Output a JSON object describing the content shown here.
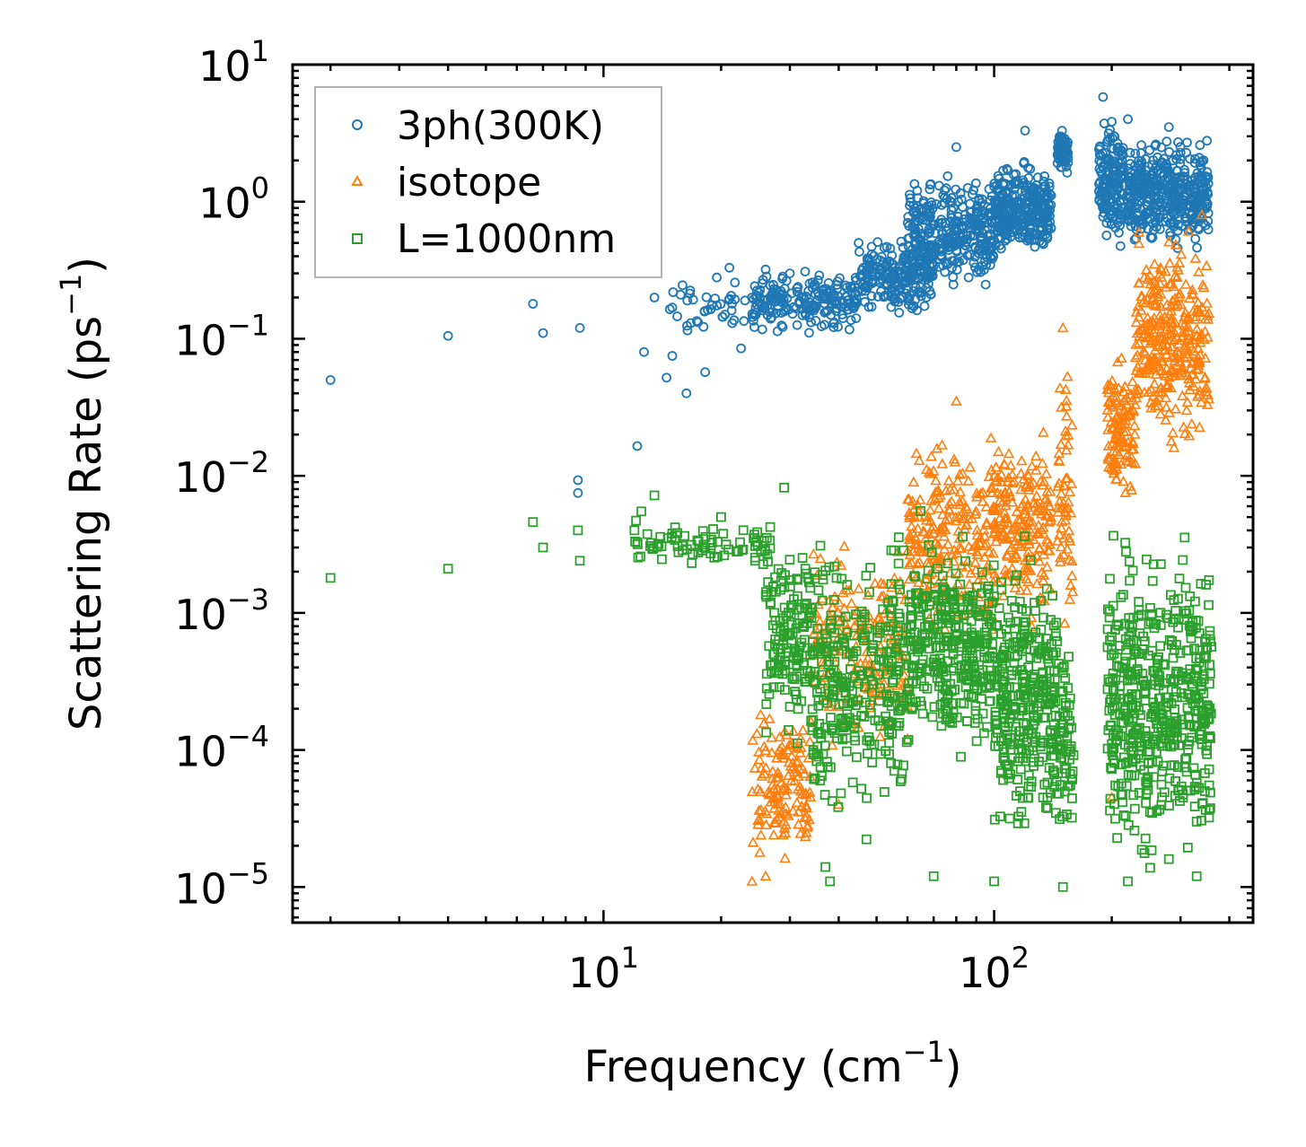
{
  "chart_data": {
    "type": "scatter",
    "xscale": "log",
    "yscale": "log",
    "xlabel": "Frequency (cm",
    "xlabel_exp": "−1",
    "xlabel_end": ")",
    "ylabel": "Scattering Rate (ps",
    "ylabel_exp": "−1",
    "ylabel_end": ")",
    "xlim": [
      1.6,
      460
    ],
    "ylim": [
      5.5e-06,
      10
    ],
    "x_major_ticks": [
      {
        "value": 10,
        "base": "10",
        "exp": "1"
      },
      {
        "value": 100,
        "base": "10",
        "exp": "2"
      }
    ],
    "y_major_ticks": [
      {
        "value": 10,
        "base": "10",
        "exp": "1"
      },
      {
        "value": 1,
        "base": "10",
        "exp": "0"
      },
      {
        "value": 0.1,
        "base": "10",
        "exp": "−1"
      },
      {
        "value": 0.01,
        "base": "10",
        "exp": "−2"
      },
      {
        "value": 0.001,
        "base": "10",
        "exp": "−3"
      },
      {
        "value": 0.0001,
        "base": "10",
        "exp": "−4"
      },
      {
        "value": 1e-05,
        "base": "10",
        "exp": "−5"
      }
    ],
    "legend_position": "top-left",
    "series": [
      {
        "name": "3ph(300K)",
        "marker": "circle",
        "color": "#1f77b4",
        "points": [
          [
            2,
            0.05
          ],
          [
            4,
            0.105
          ],
          [
            6.6,
            0.18
          ],
          [
            7,
            0.11
          ],
          [
            8.7,
            0.12
          ],
          [
            8.6,
            0.0093
          ],
          [
            8.6,
            0.0075
          ],
          [
            12.2,
            0.0165
          ],
          [
            12.7,
            0.08
          ],
          [
            13.5,
            0.2
          ],
          [
            14.5,
            0.052
          ],
          [
            15,
            0.075
          ],
          [
            16.3,
            0.04
          ],
          [
            16.4,
            0.115
          ],
          [
            18.2,
            0.057
          ],
          [
            19.5,
            0.28
          ],
          [
            21,
            0.33
          ],
          [
            22.5,
            0.085
          ],
          [
            24,
            0.2
          ],
          [
            26,
            0.32
          ],
          [
            30,
            0.3
          ],
          [
            45,
            0.5
          ],
          [
            80,
            2.5
          ],
          [
            120,
            3.3
          ],
          [
            190,
            5.8
          ],
          [
            220,
            4
          ],
          [
            280,
            3.5
          ],
          [
            350,
            1.5
          ]
        ],
        "clusters": [
          {
            "x_range": [
              14,
              26
            ],
            "y_range": [
              0.09,
              0.3
            ],
            "count": 40
          },
          {
            "x_range": [
              24,
              45
            ],
            "y_range": [
              0.1,
              0.35
            ],
            "count": 200
          },
          {
            "x_range": [
              45,
              70
            ],
            "y_range": [
              0.14,
              0.6
            ],
            "count": 220
          },
          {
            "x_range": [
              60,
              100
            ],
            "y_range": [
              0.18,
              1.8
            ],
            "count": 320
          },
          {
            "x_range": [
              100,
              140
            ],
            "y_range": [
              0.35,
              2.2
            ],
            "count": 300
          },
          {
            "x_range": [
              145,
              155
            ],
            "y_range": [
              1.4,
              4
            ],
            "count": 60
          },
          {
            "x_range": [
              185,
              215
            ],
            "y_range": [
              0.35,
              5.5
            ],
            "count": 160
          },
          {
            "x_range": [
              220,
              355
            ],
            "y_range": [
              0.4,
              3.4
            ],
            "count": 420
          }
        ]
      },
      {
        "name": "isotope",
        "marker": "triangle",
        "color": "#ff7f0e",
        "points": [
          [
            24,
            1.1e-05
          ],
          [
            26,
            1.2e-05
          ],
          [
            29,
            3e-05
          ],
          [
            32,
            5e-05
          ],
          [
            40,
            4e-05
          ],
          [
            60,
            0.00012
          ],
          [
            80,
            0.035
          ],
          [
            150,
            0.12
          ],
          [
            200,
            4.5e-05
          ],
          [
            340,
            0.8
          ],
          [
            260,
            0.18
          ]
        ],
        "clusters": [
          {
            "x_range": [
              24,
              34
            ],
            "y_range": [
              1.1e-05,
              0.0003
            ],
            "count": 140
          },
          {
            "x_range": [
              34,
              60
            ],
            "y_range": [
              7e-05,
              0.004
            ],
            "count": 180
          },
          {
            "x_range": [
              60,
              100
            ],
            "y_range": [
              0.0004,
              0.03
            ],
            "count": 240
          },
          {
            "x_range": [
              100,
              140
            ],
            "y_range": [
              0.0006,
              0.03
            ],
            "count": 200
          },
          {
            "x_range": [
              145,
              160
            ],
            "y_range": [
              0.0005,
              0.12
            ],
            "count": 60
          },
          {
            "x_range": [
              195,
              230
            ],
            "y_range": [
              0.005,
              0.09
            ],
            "count": 120
          },
          {
            "x_range": [
              230,
              355
            ],
            "y_range": [
              0.012,
              0.8
            ],
            "count": 320
          }
        ]
      },
      {
        "name": "L=1000nm",
        "marker": "square",
        "color": "#2ca02c",
        "points": [
          [
            2,
            0.0018
          ],
          [
            4,
            0.0021
          ],
          [
            6.6,
            0.0046
          ],
          [
            7,
            0.003
          ],
          [
            8.6,
            0.004
          ],
          [
            8.7,
            0.0024
          ],
          [
            12,
            0.004
          ],
          [
            12.5,
            0.0055
          ],
          [
            13.5,
            0.0072
          ],
          [
            15,
            0.0038
          ],
          [
            20,
            0.005
          ],
          [
            29,
            0.0082
          ],
          [
            37,
            1.4e-05
          ],
          [
            38,
            1.1e-05
          ],
          [
            70,
            1.2e-05
          ],
          [
            100,
            1.1e-05
          ],
          [
            150,
            1e-05
          ],
          [
            220,
            1.1e-05
          ],
          [
            280,
            1.6e-05
          ],
          [
            330,
            1.2e-05
          ]
        ],
        "clusters": [
          {
            "x_range": [
              12,
              27
            ],
            "y_range": [
              0.002,
              0.005
            ],
            "count": 80
          },
          {
            "x_range": [
              26,
              34
            ],
            "y_range": [
              0.0001,
              0.004
            ],
            "count": 140
          },
          {
            "x_range": [
              34,
              60
            ],
            "y_range": [
              1.8e-05,
              0.005
            ],
            "count": 300
          },
          {
            "x_range": [
              60,
              100
            ],
            "y_range": [
              6e-05,
              0.006
            ],
            "count": 340
          },
          {
            "x_range": [
              100,
              145
            ],
            "y_range": [
              1.5e-05,
              0.004
            ],
            "count": 320
          },
          {
            "x_range": [
              145,
              160
            ],
            "y_range": [
              1.5e-05,
              0.0009
            ],
            "count": 60
          },
          {
            "x_range": [
              195,
              360
            ],
            "y_range": [
              1e-05,
              0.005
            ],
            "count": 520
          }
        ]
      }
    ]
  }
}
